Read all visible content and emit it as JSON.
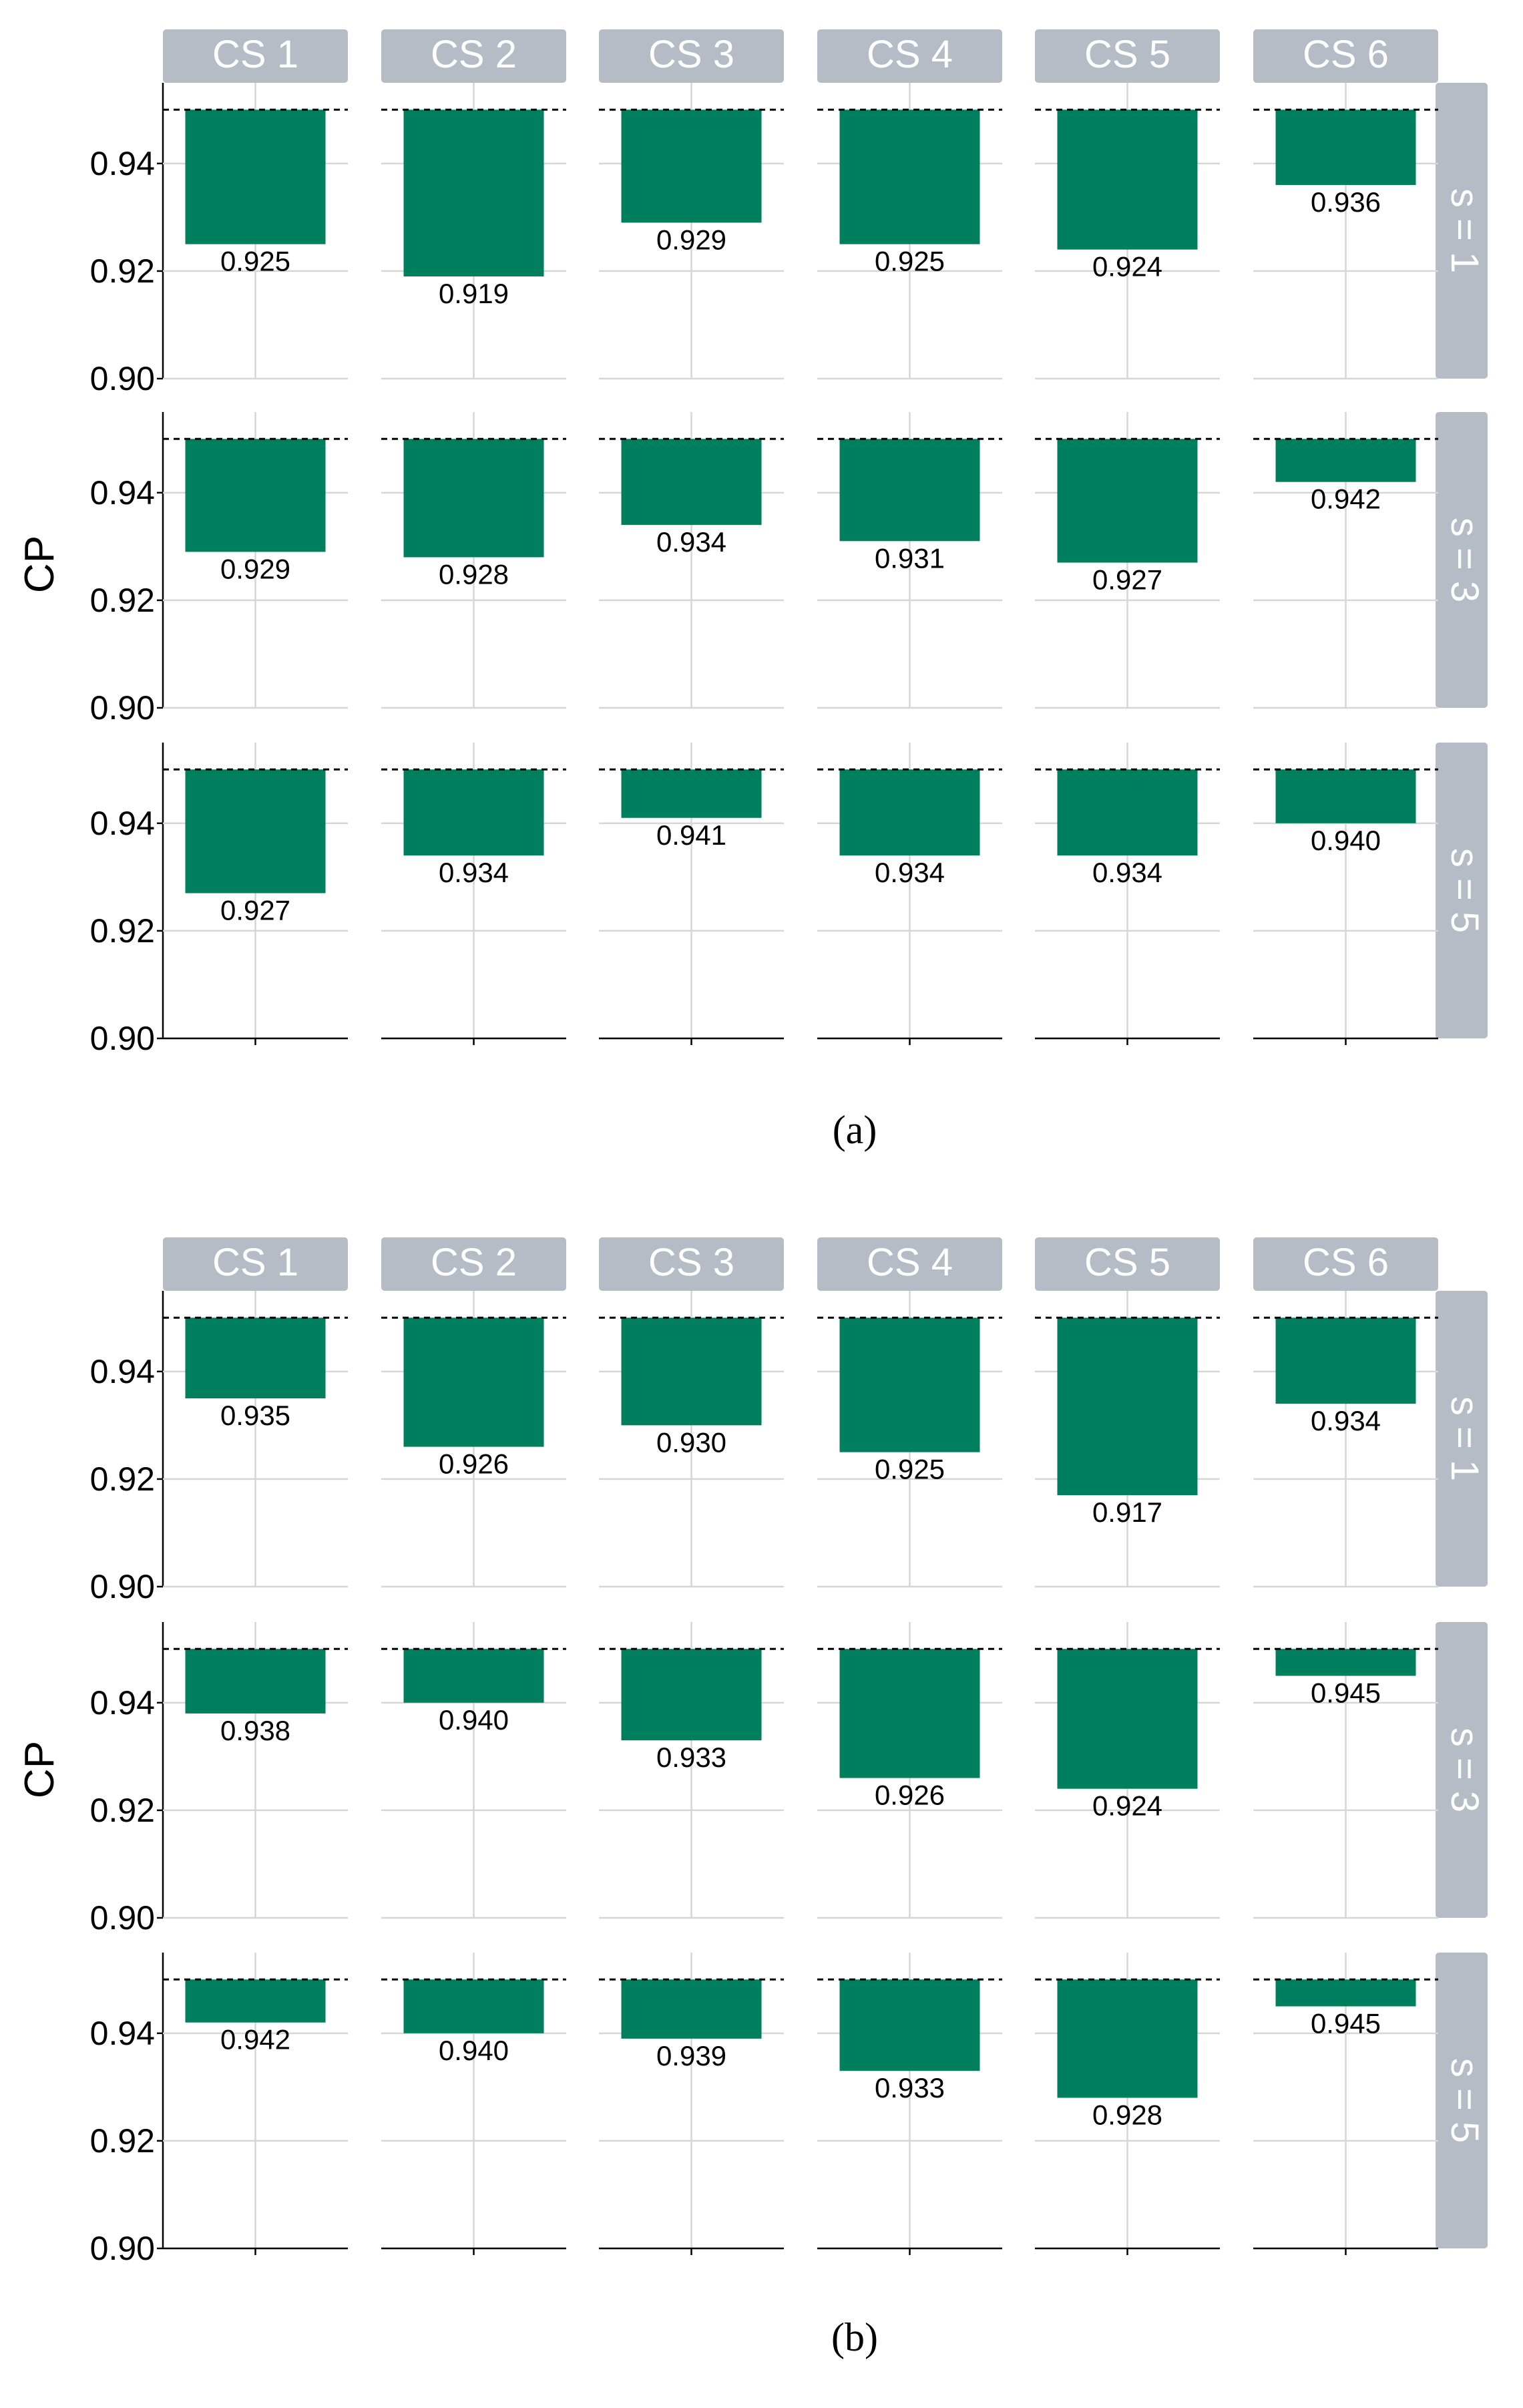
{
  "chart_data": [
    {
      "type": "bar",
      "caption": "(a)",
      "ylabel": "CP",
      "baseline": 0.95,
      "reference_line": 0.95,
      "reference_line_style": "dashed",
      "ylim": [
        0.9,
        0.955
      ],
      "yticks": [
        0.9,
        0.92,
        0.94
      ],
      "ytick_labels": [
        "0.90",
        "0.92",
        "0.94"
      ],
      "columns": [
        "CS 1",
        "CS 2",
        "CS 3",
        "CS 4",
        "CS 5",
        "CS 6"
      ],
      "rows": [
        {
          "label": "s = 1",
          "values": [
            0.925,
            0.919,
            0.929,
            0.925,
            0.924,
            0.936
          ],
          "value_labels": [
            "0.925",
            "0.919",
            "0.929",
            "0.925",
            "0.924",
            "0.936"
          ]
        },
        {
          "label": "s = 3",
          "values": [
            0.929,
            0.928,
            0.934,
            0.931,
            0.927,
            0.942
          ],
          "value_labels": [
            "0.929",
            "0.928",
            "0.934",
            "0.931",
            "0.927",
            "0.942"
          ]
        },
        {
          "label": "s = 5",
          "values": [
            0.927,
            0.934,
            0.941,
            0.934,
            0.934,
            0.94
          ],
          "value_labels": [
            "0.927",
            "0.934",
            "0.941",
            "0.934",
            "0.934",
            "0.940"
          ]
        }
      ]
    },
    {
      "type": "bar",
      "caption": "(b)",
      "ylabel": "CP",
      "baseline": 0.95,
      "reference_line": 0.95,
      "reference_line_style": "dashed",
      "ylim": [
        0.9,
        0.955
      ],
      "yticks": [
        0.9,
        0.92,
        0.94
      ],
      "ytick_labels": [
        "0.90",
        "0.92",
        "0.94"
      ],
      "columns": [
        "CS 1",
        "CS 2",
        "CS 3",
        "CS 4",
        "CS 5",
        "CS 6"
      ],
      "rows": [
        {
          "label": "s = 1",
          "values": [
            0.935,
            0.926,
            0.93,
            0.925,
            0.917,
            0.934
          ],
          "value_labels": [
            "0.935",
            "0.926",
            "0.930",
            "0.925",
            "0.917",
            "0.934"
          ]
        },
        {
          "label": "s = 3",
          "values": [
            0.938,
            0.94,
            0.933,
            0.926,
            0.924,
            0.945
          ],
          "value_labels": [
            "0.938",
            "0.940",
            "0.933",
            "0.926",
            "0.924",
            "0.945"
          ]
        },
        {
          "label": "s = 5",
          "values": [
            0.942,
            0.94,
            0.939,
            0.933,
            0.928,
            0.945
          ],
          "value_labels": [
            "0.942",
            "0.940",
            "0.939",
            "0.933",
            "0.928",
            "0.945"
          ]
        }
      ]
    }
  ],
  "colors": {
    "bar": "#007f5f",
    "strip": "#b5bcc5",
    "grid": "#d6d6d6",
    "axis": "#000000",
    "text": "#000000"
  }
}
